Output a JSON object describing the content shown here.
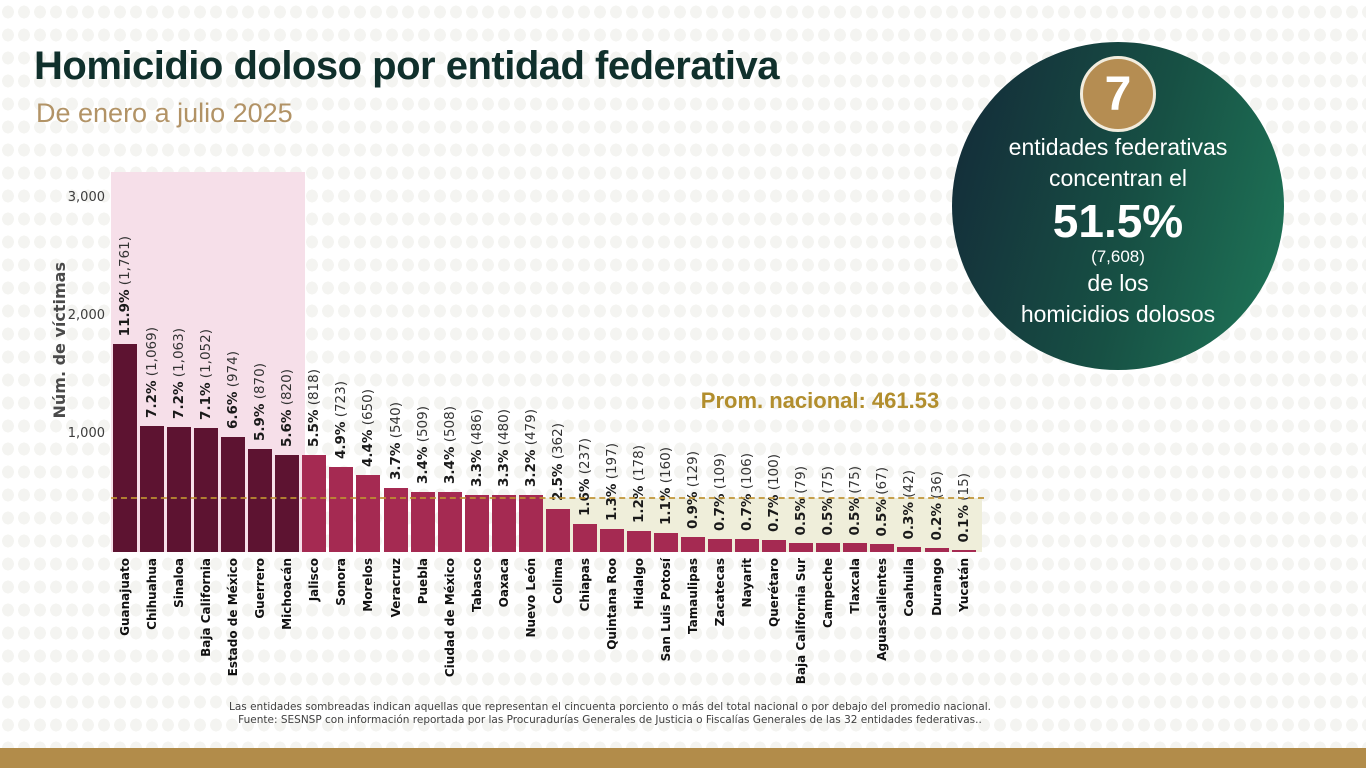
{
  "header": {
    "title": "Homicidio doloso por entidad federativa",
    "subtitle": "De enero a julio 2025"
  },
  "highlight_circle": {
    "badge_number": "7",
    "line1": "entidades federativas",
    "line2": "concentran el",
    "percent": "51.5%",
    "count_parenthetical": "(7,608)",
    "line3": "de los",
    "line4": "homicidios dolosos"
  },
  "chart_data": {
    "type": "bar",
    "ylabel": "Núm. de víctimas",
    "ylim": [
      0,
      3220
    ],
    "yticks": [
      1000,
      2000,
      3000
    ],
    "ytick_labels": [
      "1,000",
      "2,000",
      "3,000"
    ],
    "grid": false,
    "legend": false,
    "average_line": {
      "label": "Prom. nacional: 461.53",
      "value": 461.53
    },
    "highlighted_top_count": 7,
    "states": [
      {
        "name": "Guanajuato",
        "pct": "11.9%",
        "count": "1,761",
        "value": 1761
      },
      {
        "name": "Chihuahua",
        "pct": "7.2%",
        "count": "1,069",
        "value": 1069
      },
      {
        "name": "Sinaloa",
        "pct": "7.2%",
        "count": "1,063",
        "value": 1063
      },
      {
        "name": "Baja California",
        "pct": "7.1%",
        "count": "1,052",
        "value": 1052
      },
      {
        "name": "Estado de México",
        "pct": "6.6%",
        "count": "974",
        "value": 974
      },
      {
        "name": "Guerrero",
        "pct": "5.9%",
        "count": "870",
        "value": 870
      },
      {
        "name": "Michoacán",
        "pct": "5.6%",
        "count": "820",
        "value": 820
      },
      {
        "name": "Jalisco",
        "pct": "5.5%",
        "count": "818",
        "value": 818
      },
      {
        "name": "Sonora",
        "pct": "4.9%",
        "count": "723",
        "value": 723
      },
      {
        "name": "Morelos",
        "pct": "4.4%",
        "count": "650",
        "value": 650
      },
      {
        "name": "Veracruz",
        "pct": "3.7%",
        "count": "540",
        "value": 540
      },
      {
        "name": "Puebla",
        "pct": "3.4%",
        "count": "509",
        "value": 509
      },
      {
        "name": "Ciudad de México",
        "pct": "3.4%",
        "count": "508",
        "value": 508
      },
      {
        "name": "Tabasco",
        "pct": "3.3%",
        "count": "486",
        "value": 486
      },
      {
        "name": "Oaxaca",
        "pct": "3.3%",
        "count": "480",
        "value": 480
      },
      {
        "name": "Nuevo León",
        "pct": "3.2%",
        "count": "479",
        "value": 479
      },
      {
        "name": "Colima",
        "pct": "2.5%",
        "count": "362",
        "value": 362
      },
      {
        "name": "Chiapas",
        "pct": "1.6%",
        "count": "237",
        "value": 237
      },
      {
        "name": "Quintana Roo",
        "pct": "1.3%",
        "count": "197",
        "value": 197
      },
      {
        "name": "Hidalgo",
        "pct": "1.2%",
        "count": "178",
        "value": 178
      },
      {
        "name": "San Luis Potosí",
        "pct": "1.1%",
        "count": "160",
        "value": 160
      },
      {
        "name": "Tamaulipas",
        "pct": "0.9%",
        "count": "129",
        "value": 129
      },
      {
        "name": "Zacatecas",
        "pct": "0.7%",
        "count": "109",
        "value": 109
      },
      {
        "name": "Nayarit",
        "pct": "0.7%",
        "count": "106",
        "value": 106
      },
      {
        "name": "Querétaro",
        "pct": "0.7%",
        "count": "100",
        "value": 100
      },
      {
        "name": "Baja California Sur",
        "pct": "0.5%",
        "count": "79",
        "value": 79
      },
      {
        "name": "Campeche",
        "pct": "0.5%",
        "count": "75",
        "value": 75
      },
      {
        "name": "Tlaxcala",
        "pct": "0.5%",
        "count": "75",
        "value": 75
      },
      {
        "name": "Aguascalientes",
        "pct": "0.5%",
        "count": "67",
        "value": 67
      },
      {
        "name": "Coahuila",
        "pct": "0.3%",
        "count": "42",
        "value": 42
      },
      {
        "name": "Durango",
        "pct": "0.2%",
        "count": "36",
        "value": 36
      },
      {
        "name": "Yucatán",
        "pct": "0.1%",
        "count": "15",
        "value": 15
      }
    ]
  },
  "footnote": {
    "line1": "Las entidades sombreadas indican aquellas que representan el cincuenta porciento o más del total nacional o por debajo del promedio nacional.",
    "line2": "Fuente: SESNSP con información reportada por las Procuradurías Generales de Justicia o Fiscalías Generales de las 32 entidades federativas.."
  },
  "colors": {
    "title": "#10302c",
    "tan": "#b29366",
    "bar_dark": "#5d1331",
    "bar_light": "#a52a52",
    "band_pink": "#f6dfe9",
    "band_beige": "#efeeda",
    "avg_line": "#bf9232",
    "avg_label": "#b28e2d",
    "circle_dark": "#142f3a",
    "circle_light": "#1e7457",
    "badge_gold": "#b58d52",
    "footer_bar": "#b28c4a"
  }
}
